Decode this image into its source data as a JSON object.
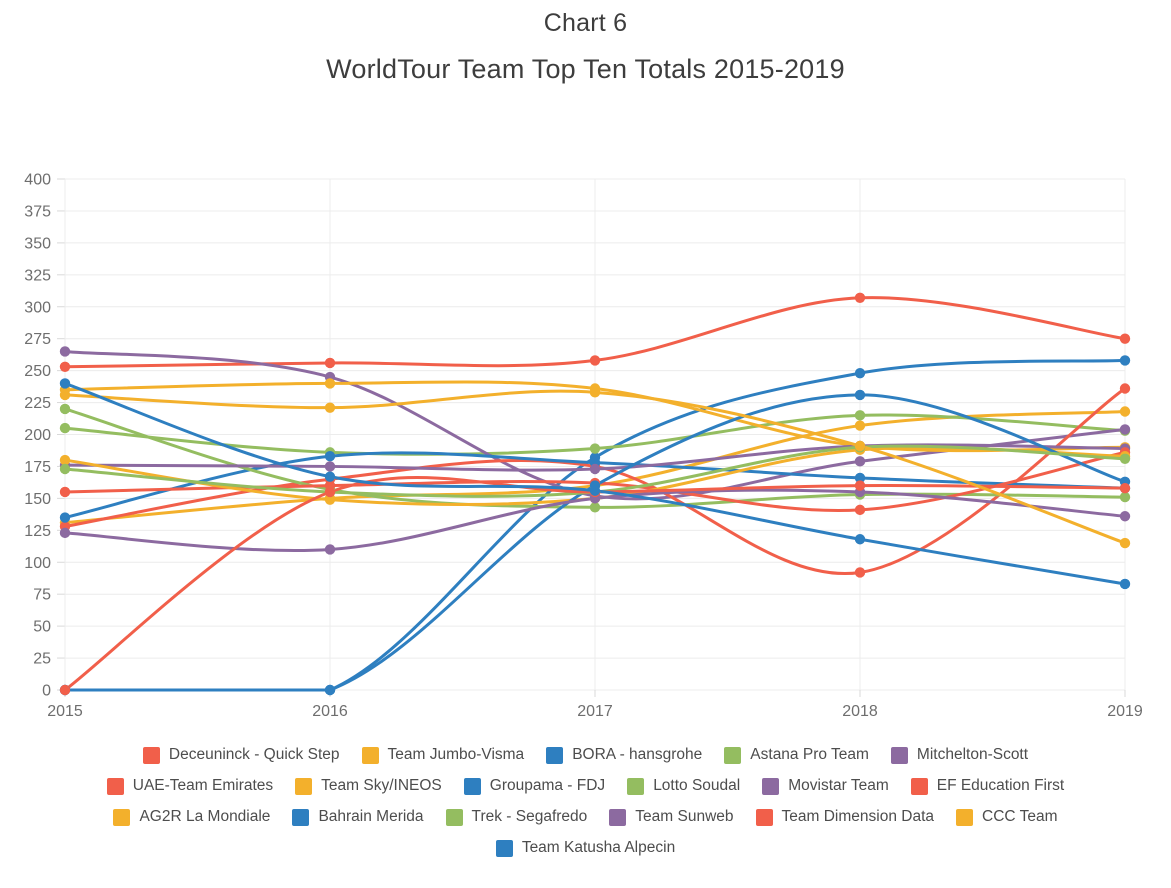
{
  "chart_data": {
    "type": "line",
    "title": "Chart 6",
    "subtitle": "WorldTour Team Top Ten Totals 2015-2019",
    "x_labels": [
      "2015",
      "2016",
      "2017",
      "2018",
      "2019"
    ],
    "y_ticks": [
      0,
      25,
      50,
      75,
      100,
      125,
      150,
      175,
      200,
      225,
      250,
      275,
      300,
      325,
      350,
      375,
      400
    ],
    "ylim": [
      0,
      400
    ],
    "grid": true,
    "line_style": "smoothed",
    "legend_position": "bottom",
    "legend_rows": [
      5,
      6,
      6,
      1
    ],
    "colors": {
      "red": "#F15F4A",
      "yellow": "#F3B02C",
      "blue": "#2E7FC0",
      "green": "#94BD60",
      "purple": "#8C6AA0",
      "grid": "#ececec",
      "tick": "#d9d9d9",
      "axis_text": "#6e6e6e",
      "title_text": "#3d3d3d"
    },
    "series": [
      {
        "name": "Deceuninck - Quick Step",
        "color": "#F15F4A",
        "values": [
          253,
          256,
          258,
          307,
          275
        ]
      },
      {
        "name": "Team Jumbo-Visma",
        "color": "#F3B02C",
        "values": [
          131,
          150,
          160,
          207,
          218
        ]
      },
      {
        "name": "BORA - hansgrohe",
        "color": "#2E7FC0",
        "values": [
          0,
          0,
          182,
          248,
          258
        ]
      },
      {
        "name": "Astana Pro Team",
        "color": "#94BD60",
        "values": [
          205,
          186,
          189,
          215,
          203
        ]
      },
      {
        "name": "Mitchelton-Scott",
        "color": "#8C6AA0",
        "values": [
          265,
          245,
          152,
          179,
          204
        ]
      },
      {
        "name": "UAE-Team Emirates",
        "color": "#F15F4A",
        "values": [
          128,
          165,
          175,
          92,
          236
        ]
      },
      {
        "name": "Team Sky/INEOS",
        "color": "#F3B02C",
        "values": [
          235,
          240,
          236,
          191,
          190
        ]
      },
      {
        "name": "Groupama - FDJ",
        "color": "#2E7FC0",
        "values": [
          135,
          183,
          178,
          166,
          158
        ]
      },
      {
        "name": "Lotto Soudal",
        "color": "#94BD60",
        "values": [
          220,
          157,
          143,
          153,
          151
        ]
      },
      {
        "name": "Movistar Team",
        "color": "#8C6AA0",
        "values": [
          176,
          175,
          173,
          191,
          189
        ]
      },
      {
        "name": "EF Education First",
        "color": "#F15F4A",
        "values": [
          155,
          160,
          162,
          141,
          186
        ]
      },
      {
        "name": "AG2R La Mondiale",
        "color": "#F3B02C",
        "values": [
          180,
          149,
          150,
          188,
          183
        ]
      },
      {
        "name": "Bahrain Merida",
        "color": "#2E7FC0",
        "values": [
          0,
          0,
          160,
          231,
          163
        ]
      },
      {
        "name": "Trek - Segafredo",
        "color": "#94BD60",
        "values": [
          173,
          155,
          155,
          190,
          181
        ]
      },
      {
        "name": "Team Sunweb",
        "color": "#8C6AA0",
        "values": [
          123,
          110,
          150,
          155,
          136
        ]
      },
      {
        "name": "Team Dimension Data",
        "color": "#F15F4A",
        "values": [
          0,
          155,
          155,
          160,
          158
        ]
      },
      {
        "name": "CCC Team",
        "color": "#F3B02C",
        "values": [
          231,
          221,
          233,
          191,
          115
        ]
      },
      {
        "name": "Team Katusha Alpecin",
        "color": "#2E7FC0",
        "values": [
          240,
          167,
          156,
          118,
          83
        ]
      }
    ]
  }
}
